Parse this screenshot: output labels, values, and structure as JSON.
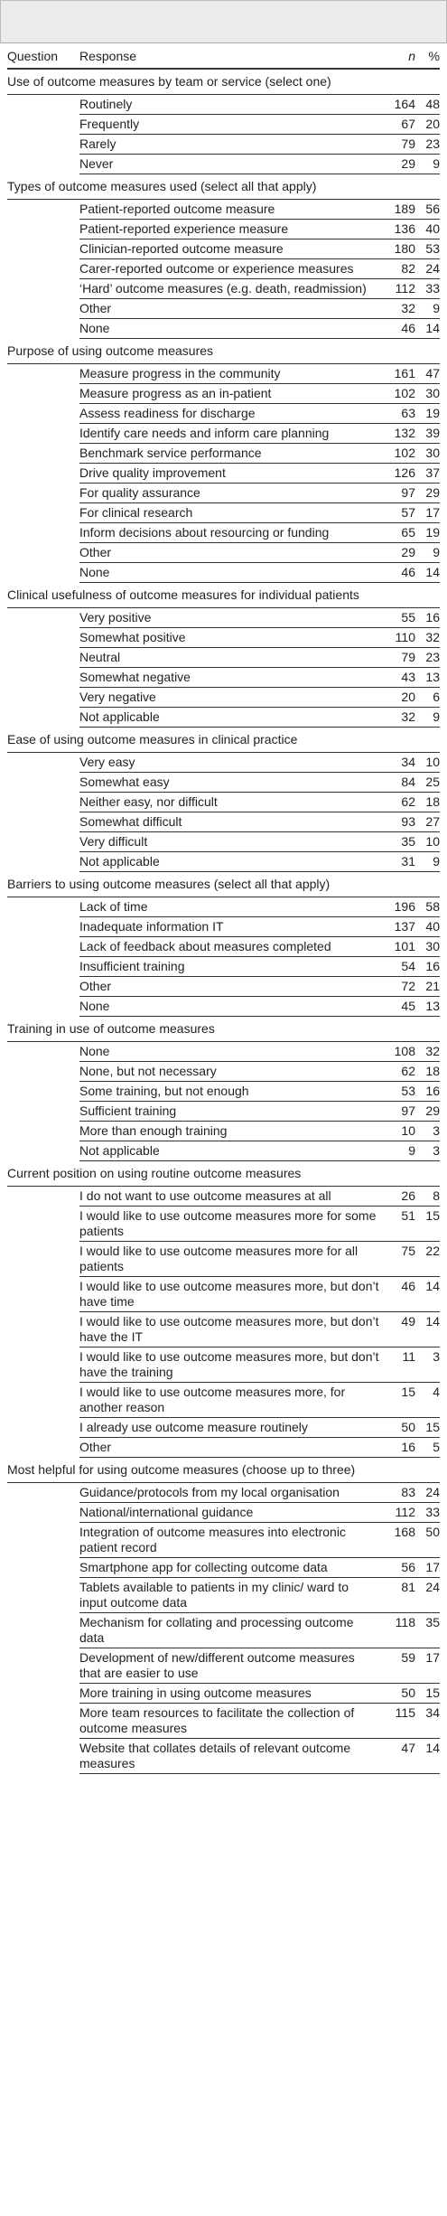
{
  "header": {
    "question": "Question",
    "response": "Response",
    "n": "n",
    "pct": "%"
  },
  "sections": [
    {
      "title": "Use of outcome measures by team or service (select one)",
      "rows": [
        {
          "label": "Routinely",
          "n": "164",
          "pct": "48"
        },
        {
          "label": "Frequently",
          "n": "67",
          "pct": "20"
        },
        {
          "label": "Rarely",
          "n": "79",
          "pct": "23"
        },
        {
          "label": "Never",
          "n": "29",
          "pct": "9"
        }
      ]
    },
    {
      "title": "Types of outcome measures used (select all that apply)",
      "rows": [
        {
          "label": "Patient-reported outcome measure",
          "n": "189",
          "pct": "56"
        },
        {
          "label": "Patient-reported experience measure",
          "n": "136",
          "pct": "40"
        },
        {
          "label": "Clinician-reported outcome measure",
          "n": "180",
          "pct": "53"
        },
        {
          "label": "Carer-reported outcome or experience measures",
          "n": "82",
          "pct": "24"
        },
        {
          "label": "‘Hard’ outcome measures (e.g. death, readmission)",
          "n": "112",
          "pct": "33"
        },
        {
          "label": "Other",
          "n": "32",
          "pct": "9"
        },
        {
          "label": "None",
          "n": "46",
          "pct": "14"
        }
      ]
    },
    {
      "title": "Purpose of using outcome measures",
      "rows": [
        {
          "label": "Measure progress in the community",
          "n": "161",
          "pct": "47"
        },
        {
          "label": "Measure progress as an in-patient",
          "n": "102",
          "pct": "30"
        },
        {
          "label": "Assess readiness for discharge",
          "n": "63",
          "pct": "19"
        },
        {
          "label": "Identify care needs and inform care planning",
          "n": "132",
          "pct": "39"
        },
        {
          "label": "Benchmark service performance",
          "n": "102",
          "pct": "30"
        },
        {
          "label": "Drive quality improvement",
          "n": "126",
          "pct": "37"
        },
        {
          "label": "For quality assurance",
          "n": "97",
          "pct": "29"
        },
        {
          "label": "For clinical research",
          "n": "57",
          "pct": "17"
        },
        {
          "label": "Inform decisions about resourcing or funding",
          "n": "65",
          "pct": "19"
        },
        {
          "label": "Other",
          "n": "29",
          "pct": "9"
        },
        {
          "label": "None",
          "n": "46",
          "pct": "14"
        }
      ]
    },
    {
      "title": "Clinical usefulness of outcome measures for individual patients",
      "rows": [
        {
          "label": "Very positive",
          "n": "55",
          "pct": "16"
        },
        {
          "label": "Somewhat positive",
          "n": "110",
          "pct": "32"
        },
        {
          "label": "Neutral",
          "n": "79",
          "pct": "23"
        },
        {
          "label": "Somewhat negative",
          "n": "43",
          "pct": "13"
        },
        {
          "label": "Very negative",
          "n": "20",
          "pct": "6"
        },
        {
          "label": "Not applicable",
          "n": "32",
          "pct": "9"
        }
      ]
    },
    {
      "title": "Ease of using outcome measures in clinical practice",
      "rows": [
        {
          "label": "Very easy",
          "n": "34",
          "pct": "10"
        },
        {
          "label": "Somewhat easy",
          "n": "84",
          "pct": "25"
        },
        {
          "label": "Neither easy, nor difficult",
          "n": "62",
          "pct": "18"
        },
        {
          "label": "Somewhat difficult",
          "n": "93",
          "pct": "27"
        },
        {
          "label": "Very difficult",
          "n": "35",
          "pct": "10"
        },
        {
          "label": "Not applicable",
          "n": "31",
          "pct": "9"
        }
      ]
    },
    {
      "title": "Barriers to using outcome measures (select all that apply)",
      "rows": [
        {
          "label": "Lack of time",
          "n": "196",
          "pct": "58"
        },
        {
          "label": "Inadequate information IT",
          "n": "137",
          "pct": "40"
        },
        {
          "label": "Lack of feedback about measures completed",
          "n": "101",
          "pct": "30"
        },
        {
          "label": "Insufficient training",
          "n": "54",
          "pct": "16"
        },
        {
          "label": "Other",
          "n": "72",
          "pct": "21"
        },
        {
          "label": "None",
          "n": "45",
          "pct": "13"
        }
      ]
    },
    {
      "title": "Training in use of outcome measures",
      "rows": [
        {
          "label": "None",
          "n": "108",
          "pct": "32"
        },
        {
          "label": "None, but not necessary",
          "n": "62",
          "pct": "18"
        },
        {
          "label": "Some training, but not enough",
          "n": "53",
          "pct": "16"
        },
        {
          "label": "Sufficient training",
          "n": "97",
          "pct": "29"
        },
        {
          "label": "More than enough training",
          "n": "10",
          "pct": "3"
        },
        {
          "label": "Not applicable",
          "n": "9",
          "pct": "3"
        }
      ]
    },
    {
      "title": "Current position on using routine outcome measures",
      "rows": [
        {
          "label": "I do not want to use outcome measures at all",
          "n": "26",
          "pct": "8"
        },
        {
          "label": "I would like to use outcome measures more for some patients",
          "n": "51",
          "pct": "15"
        },
        {
          "label": "I would like to use outcome measures more for all patients",
          "n": "75",
          "pct": "22"
        },
        {
          "label": "I would like to use outcome measures more, but don’t have time",
          "n": "46",
          "pct": "14"
        },
        {
          "label": "I would like to use outcome measures more, but don’t have the IT",
          "n": "49",
          "pct": "14"
        },
        {
          "label": "I would like to use outcome measures more, but don’t have the training",
          "n": "11",
          "pct": "3"
        },
        {
          "label": "I would like to use outcome measures more, for another reason",
          "n": "15",
          "pct": "4"
        },
        {
          "label": "I already use outcome measure routinely",
          "n": "50",
          "pct": "15"
        },
        {
          "label": "Other",
          "n": "16",
          "pct": "5"
        }
      ]
    },
    {
      "title": "Most helpful for using outcome measures (choose up to three)",
      "rows": [
        {
          "label": "Guidance/protocols from my local organisation",
          "n": "83",
          "pct": "24"
        },
        {
          "label": "National/international guidance",
          "n": "112",
          "pct": "33"
        },
        {
          "label": "Integration of outcome measures into electronic patient record",
          "n": "168",
          "pct": "50"
        },
        {
          "label": "Smartphone app for collecting outcome data",
          "n": "56",
          "pct": "17"
        },
        {
          "label": "Tablets available to patients in my clinic/ ward to input outcome data",
          "n": "81",
          "pct": "24"
        },
        {
          "label": "Mechanism for collating and processing outcome data",
          "n": "118",
          "pct": "35"
        },
        {
          "label": "Development of new/different outcome measures that are easier to use",
          "n": "59",
          "pct": "17"
        },
        {
          "label": "More training in using outcome measures",
          "n": "50",
          "pct": "15"
        },
        {
          "label": "More team resources to facilitate the collection of outcome measures",
          "n": "115",
          "pct": "34"
        },
        {
          "label": "Website that collates details of relevant outcome measures",
          "n": "47",
          "pct": "14"
        }
      ]
    }
  ]
}
